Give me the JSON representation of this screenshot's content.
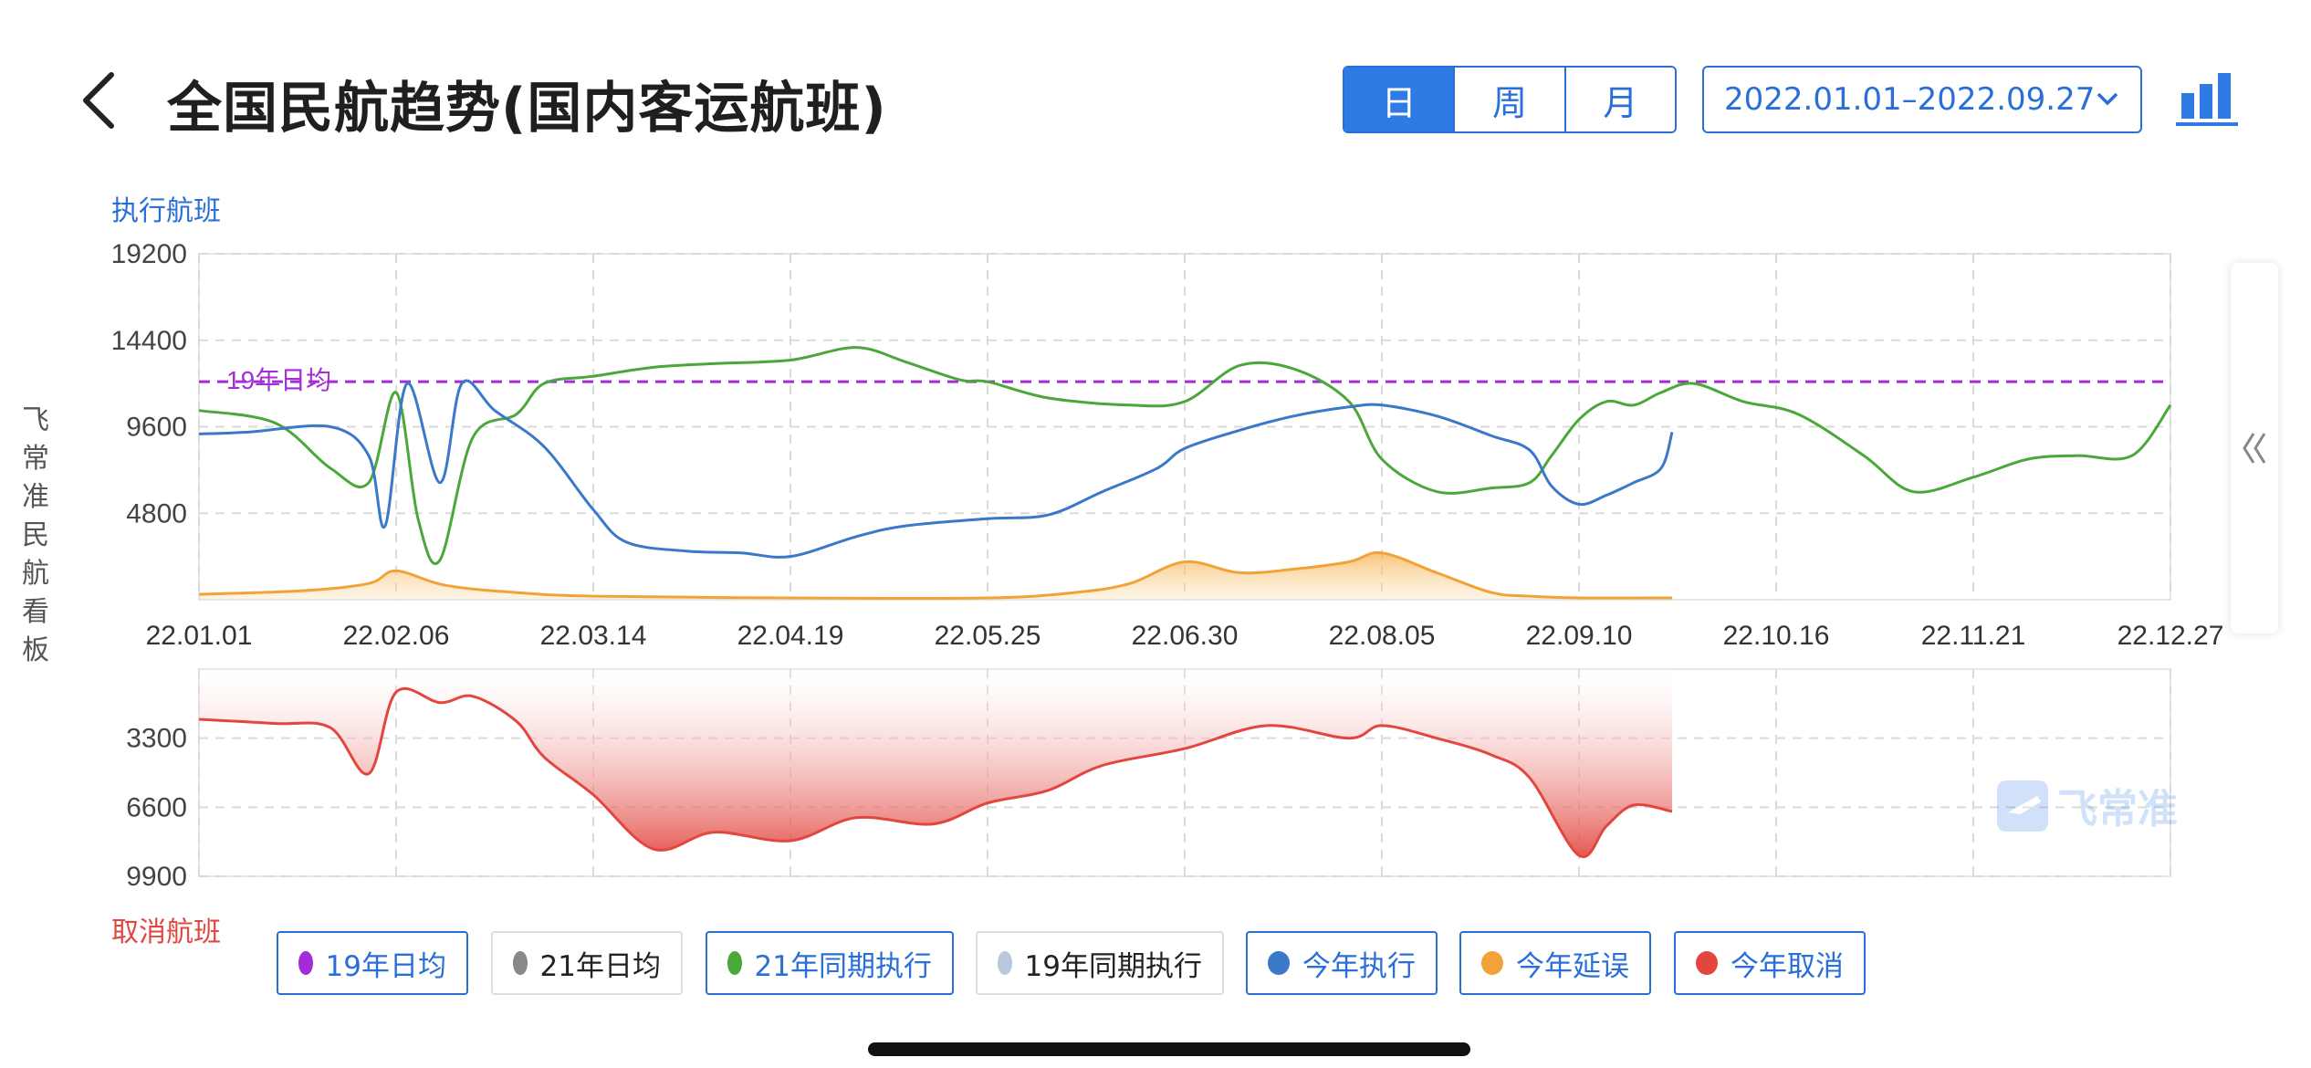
{
  "header": {
    "back_icon": "chevron-left-icon",
    "title": "全国民航趋势(国内客运航班)",
    "tabs": [
      {
        "label": "日",
        "active": true
      },
      {
        "label": "周",
        "active": false
      },
      {
        "label": "月",
        "active": false
      }
    ],
    "date_range": "2022.01.01–2022.09.27",
    "chart_toggle_icon": "bar-chart-icon"
  },
  "side": {
    "vertical_label": "飞常准民航看板",
    "collapse_icon": "double-chevron-left-icon"
  },
  "watermark": "飞常准",
  "colors": {
    "accent": "#2f7be5",
    "y19_avg": "#a32cd6",
    "y21_avg": "#888888",
    "y21_same": "#4aa83a",
    "y19_same": "#b9c9dd",
    "executed": "#3a78c9",
    "delayed": "#f1a33a",
    "cancelled": "#e2463f"
  },
  "legend": [
    {
      "label": "19年日均",
      "color": "#a32cd6",
      "active": true
    },
    {
      "label": "21年日均",
      "color": "#888888",
      "active": false
    },
    {
      "label": "21年同期执行",
      "color": "#4aa83a",
      "active": true
    },
    {
      "label": "19年同期执行",
      "color": "#b9c9dd",
      "active": false
    },
    {
      "label": "今年执行",
      "color": "#3a78c9",
      "active": true
    },
    {
      "label": "今年延误",
      "color": "#f1a33a",
      "active": true
    },
    {
      "label": "今年取消",
      "color": "#e2463f",
      "active": true
    }
  ],
  "chart_data": [
    {
      "type": "line",
      "ylabel": "执行航班",
      "yticks": [
        19200,
        14400,
        9600,
        4800
      ],
      "ylim": [
        0,
        19200
      ],
      "xticks": [
        "22.01.01",
        "22.02.06",
        "22.03.14",
        "22.04.19",
        "22.05.25",
        "22.06.30",
        "22.08.05",
        "22.09.10",
        "22.10.16",
        "22.11.21",
        "22.12.27"
      ],
      "grid": true,
      "reference_line": {
        "name": "19年日均",
        "value": 12100,
        "label": "19年日均"
      },
      "series": [
        {
          "name": "21年同期执行",
          "x": [
            "22.01.01",
            "22.01.15",
            "22.01.25",
            "22.02.01",
            "22.02.06",
            "22.02.10",
            "22.02.14",
            "22.02.20",
            "22.02.28",
            "22.03.05",
            "22.03.14",
            "22.03.25",
            "22.04.05",
            "22.04.19",
            "22.05.01",
            "22.05.10",
            "22.05.20",
            "22.05.25",
            "22.06.05",
            "22.06.20",
            "22.06.30",
            "22.07.10",
            "22.07.20",
            "22.07.30",
            "22.08.05",
            "22.08.15",
            "22.08.25",
            "22.09.01",
            "22.09.05",
            "22.09.10",
            "22.09.15",
            "22.09.20",
            "22.09.25",
            "22.10.01",
            "22.10.10",
            "22.10.20",
            "22.11.01",
            "22.11.10",
            "22.11.21",
            "22.12.01",
            "22.12.10",
            "22.12.20",
            "22.12.27"
          ],
          "values": [
            10500,
            9800,
            7300,
            6500,
            11500,
            4500,
            2200,
            9000,
            10300,
            12000,
            12400,
            12900,
            13100,
            13300,
            14000,
            13200,
            12200,
            12100,
            11200,
            10800,
            11000,
            13000,
            12800,
            11000,
            7800,
            6000,
            6200,
            6500,
            8000,
            10000,
            11000,
            10800,
            11500,
            12000,
            11000,
            10300,
            8000,
            6000,
            6800,
            7800,
            8000,
            8000,
            10800
          ]
        },
        {
          "name": "今年执行",
          "x": [
            "22.01.01",
            "22.01.10",
            "22.01.25",
            "22.02.01",
            "22.02.04",
            "22.02.08",
            "22.02.14",
            "22.02.18",
            "22.02.24",
            "22.03.05",
            "22.03.14",
            "22.03.20",
            "22.03.31",
            "22.04.10",
            "22.04.19",
            "22.05.01",
            "22.05.10",
            "22.05.25",
            "22.06.05",
            "22.06.15",
            "22.06.25",
            "22.06.30",
            "22.07.10",
            "22.07.20",
            "22.07.30",
            "22.08.05",
            "22.08.15",
            "22.08.25",
            "22.09.01",
            "22.09.05",
            "22.09.10",
            "22.09.15",
            "22.09.20",
            "22.09.25",
            "22.09.27"
          ],
          "values": [
            9200,
            9300,
            9600,
            8000,
            4100,
            12000,
            6500,
            12000,
            10500,
            8500,
            5000,
            3200,
            2700,
            2600,
            2400,
            3500,
            4100,
            4500,
            4700,
            6000,
            7300,
            8400,
            9400,
            10200,
            10700,
            10800,
            10200,
            9100,
            8300,
            6300,
            5300,
            5800,
            6500,
            7300,
            9300
          ]
        },
        {
          "name": "今年延误",
          "x": [
            "22.01.01",
            "22.01.20",
            "22.02.01",
            "22.02.06",
            "22.02.15",
            "22.02.28",
            "22.03.14",
            "22.04.19",
            "22.05.25",
            "22.06.10",
            "22.06.20",
            "22.06.30",
            "22.07.10",
            "22.07.20",
            "22.07.30",
            "22.08.05",
            "22.08.15",
            "22.08.25",
            "22.09.01",
            "22.09.10",
            "22.09.27"
          ],
          "values": [
            300,
            500,
            900,
            1600,
            800,
            400,
            200,
            100,
            100,
            400,
            900,
            2100,
            1500,
            1700,
            2100,
            2600,
            1500,
            400,
            200,
            100,
            100
          ]
        }
      ]
    },
    {
      "type": "area",
      "ylabel": "取消航班",
      "yticks": [
        3300,
        6600,
        9900
      ],
      "ylim": [
        0,
        9900
      ],
      "inverted": true,
      "xticks": [
        "22.01.01",
        "22.02.06",
        "22.03.14",
        "22.04.19",
        "22.05.25",
        "22.06.30",
        "22.08.05",
        "22.09.10",
        "22.10.16",
        "22.11.21",
        "22.12.27"
      ],
      "grid": true,
      "series": [
        {
          "name": "今年取消",
          "x": [
            "22.01.01",
            "22.01.15",
            "22.01.25",
            "22.02.01",
            "22.02.06",
            "22.02.14",
            "22.02.20",
            "22.02.28",
            "22.03.05",
            "22.03.14",
            "22.03.25",
            "22.04.05",
            "22.04.19",
            "22.05.01",
            "22.05.15",
            "22.05.25",
            "22.06.05",
            "22.06.15",
            "22.06.30",
            "22.07.15",
            "22.07.30",
            "22.08.05",
            "22.08.15",
            "22.08.25",
            "22.09.01",
            "22.09.10",
            "22.09.15",
            "22.09.20",
            "22.09.27"
          ],
          "values": [
            2400,
            2600,
            2800,
            5000,
            1100,
            1600,
            1300,
            2500,
            4200,
            6000,
            8600,
            7800,
            8200,
            7100,
            7400,
            6400,
            5800,
            4600,
            3800,
            2700,
            3300,
            2700,
            3300,
            4100,
            5200,
            8900,
            7500,
            6500,
            6800
          ]
        }
      ]
    }
  ]
}
